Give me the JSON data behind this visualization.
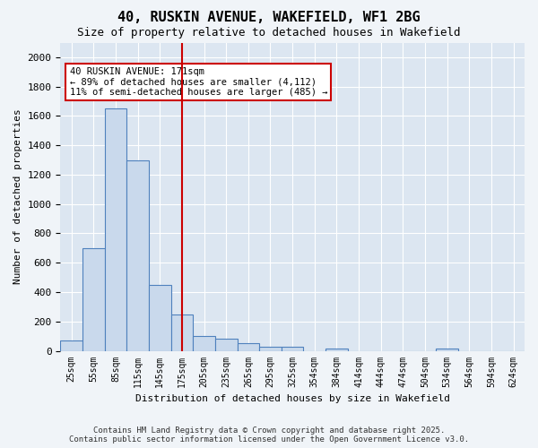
{
  "title": "40, RUSKIN AVENUE, WAKEFIELD, WF1 2BG",
  "subtitle": "Size of property relative to detached houses in Wakefield",
  "xlabel": "Distribution of detached houses by size in Wakefield",
  "ylabel": "Number of detached properties",
  "bar_color": "#c9d9ec",
  "bar_edge_color": "#4f81bd",
  "background_color": "#dce6f1",
  "grid_color": "#ffffff",
  "fig_background_color": "#f0f4f8",
  "categories": [
    "25sqm",
    "55sqm",
    "85sqm",
    "115sqm",
    "145sqm",
    "175sqm",
    "205sqm",
    "235sqm",
    "265sqm",
    "295sqm",
    "325sqm",
    "354sqm",
    "384sqm",
    "414sqm",
    "444sqm",
    "474sqm",
    "504sqm",
    "534sqm",
    "564sqm",
    "594sqm",
    "624sqm"
  ],
  "values": [
    70,
    700,
    1650,
    1300,
    450,
    250,
    100,
    80,
    50,
    30,
    25,
    0,
    15,
    0,
    0,
    0,
    0,
    15,
    0,
    0,
    0
  ],
  "ylim": [
    0,
    2100
  ],
  "yticks": [
    0,
    200,
    400,
    600,
    800,
    1000,
    1200,
    1400,
    1600,
    1800,
    2000
  ],
  "property_line_x": 5.0,
  "annotation_line1": "40 RUSKIN AVENUE: 171sqm",
  "annotation_line2": "← 89% of detached houses are smaller (4,112)",
  "annotation_line3": "11% of semi-detached houses are larger (485) →",
  "annotation_box_color": "#ffffff",
  "annotation_box_edge_color": "#cc0000",
  "red_line_color": "#cc0000",
  "footer_line1": "Contains HM Land Registry data © Crown copyright and database right 2025.",
  "footer_line2": "Contains public sector information licensed under the Open Government Licence v3.0."
}
